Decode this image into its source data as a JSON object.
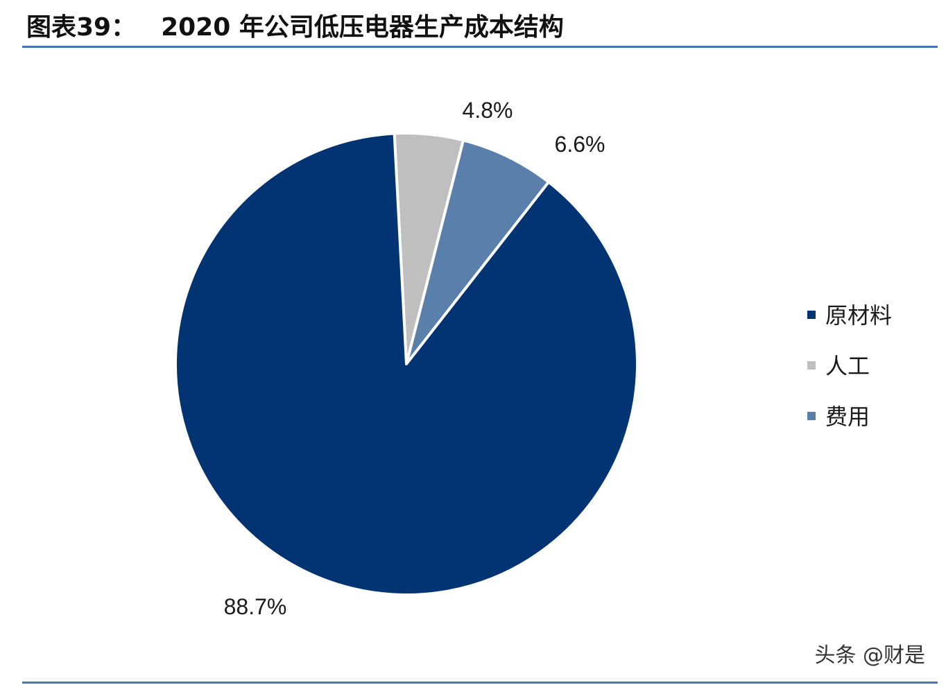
{
  "header": {
    "figure_label": "图表39：",
    "title_text": "2020 年公司低压电器生产成本结构"
  },
  "chart_data": {
    "type": "pie",
    "categories": [
      "原材料",
      "人工",
      "费用"
    ],
    "values": [
      88.7,
      4.8,
      6.6
    ],
    "labels": [
      "88.7%",
      "4.8%",
      "6.6%"
    ],
    "colors": [
      "#023473",
      "#bfbfbf",
      "#5a7fab"
    ],
    "title": "2020 年公司低压电器生产成本结构",
    "legend_position": "right"
  },
  "watermark": {
    "text": "头条 @财是"
  },
  "colors": {
    "rule": "#4a73b8"
  }
}
